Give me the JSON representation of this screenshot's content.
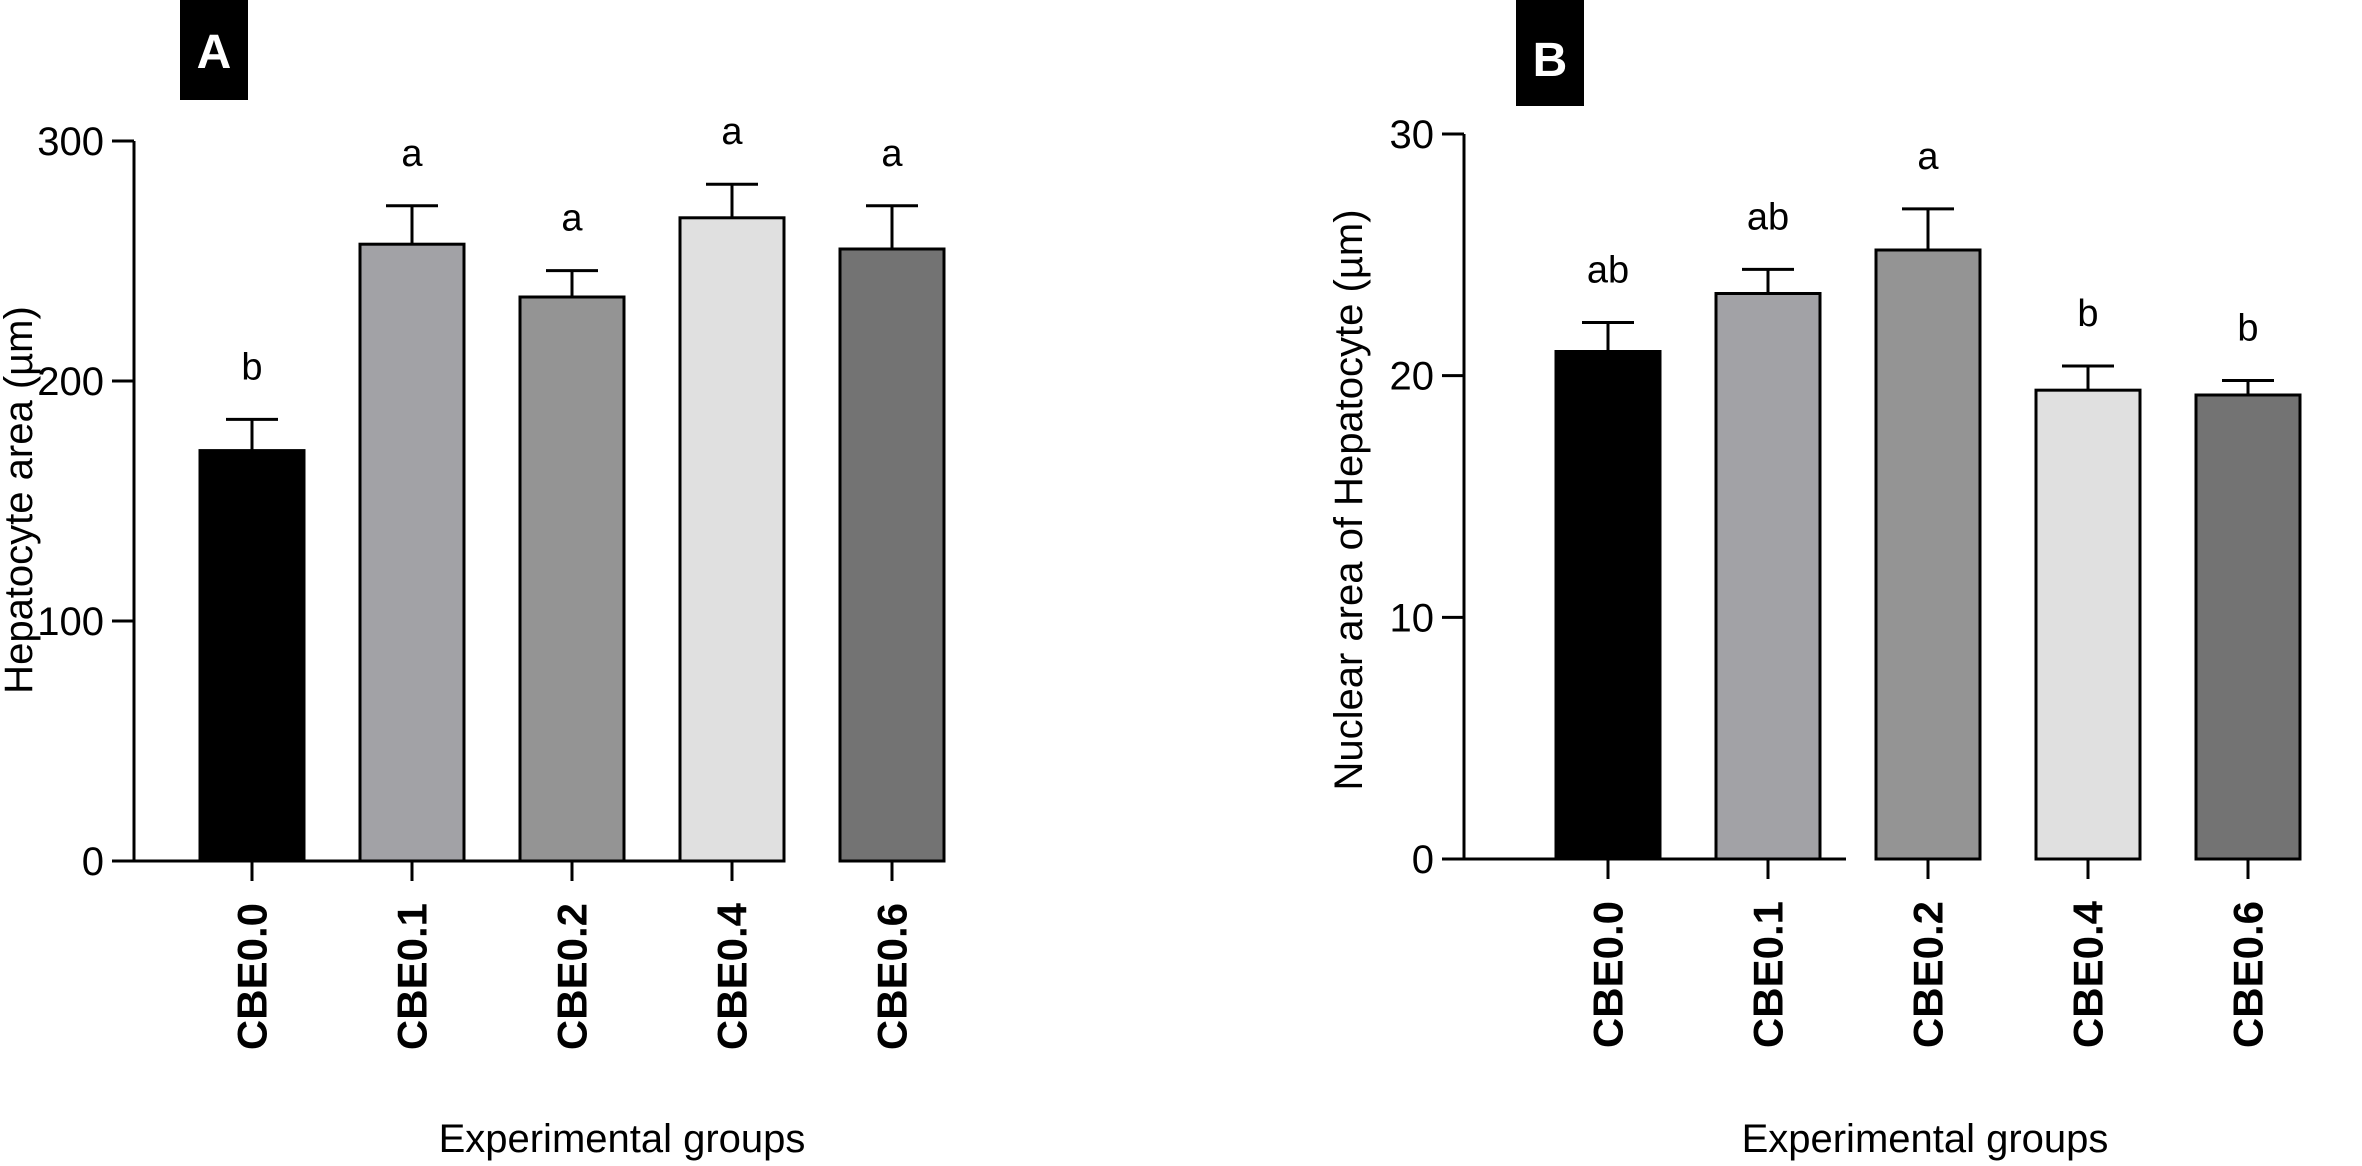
{
  "chart_data": [
    {
      "type": "bar",
      "panel": "A",
      "categories": [
        "CBE0.0",
        "CBE0.1",
        "CBE0.2",
        "CBE0.4",
        "CBE0.6"
      ],
      "values": [
        171,
        257,
        235,
        268,
        255
      ],
      "errors": [
        13,
        16,
        11,
        14,
        18
      ],
      "significance": [
        "b",
        "a",
        "a",
        "a",
        "a"
      ],
      "colors": [
        "#000000",
        "#a2a2a6",
        "#949494",
        "#e0e0e0",
        "#737373"
      ],
      "xlabel": "Experimental groups",
      "ylabel": "Hepatocyte area (µm)",
      "ylim": [
        0,
        300
      ],
      "yticks": [
        0,
        100,
        200,
        300
      ],
      "grid": false
    },
    {
      "type": "bar",
      "panel": "B",
      "categories": [
        "CBE0.0",
        "CBE0.1",
        "CBE0.2",
        "CBE0.4",
        "CBE0.6"
      ],
      "values": [
        21.0,
        23.4,
        25.2,
        19.4,
        19.2
      ],
      "errors": [
        1.2,
        1.0,
        1.7,
        1.0,
        0.6
      ],
      "significance": [
        "ab",
        "ab",
        "a",
        "b",
        "b"
      ],
      "colors": [
        "#000000",
        "#a2a2a6",
        "#949494",
        "#e0e0e0",
        "#737373"
      ],
      "xlabel": "Experimental groups",
      "ylabel": "Nuclear area of Hepatocyte (µm)",
      "ylim": [
        0,
        30
      ],
      "yticks": [
        0,
        10,
        20,
        30
      ],
      "grid": false
    }
  ]
}
